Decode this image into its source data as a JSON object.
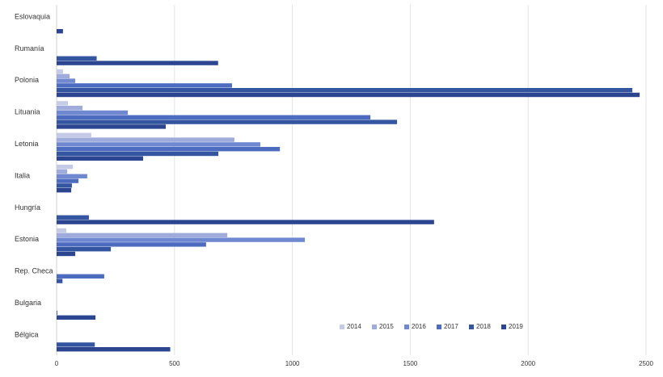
{
  "chart_data": {
    "type": "hbar",
    "categories": [
      "Eslovaquia",
      "Rumanía",
      "Polonia",
      "Lituania",
      "Letonia",
      "Italia",
      "Hungría",
      "Estonia",
      "Rep. Checa",
      "Bulgaria",
      "Bélgica"
    ],
    "series": [
      {
        "name": "2014",
        "color": "#c5cbe6",
        "values": [
          null,
          null,
          27,
          48,
          147,
          69,
          null,
          41,
          null,
          null,
          null
        ]
      },
      {
        "name": "2015",
        "color": "#9eabdb",
        "values": [
          null,
          null,
          55,
          110,
          754,
          45,
          null,
          724,
          null,
          null,
          null
        ]
      },
      {
        "name": "2016",
        "color": "#6f88d0",
        "values": [
          null,
          null,
          79,
          302,
          864,
          130,
          null,
          1053,
          null,
          null,
          null
        ]
      },
      {
        "name": "2017",
        "color": "#4d6cc0",
        "values": [
          null,
          null,
          744,
          1331,
          947,
          93,
          null,
          634,
          202,
          null,
          null
        ]
      },
      {
        "name": "2018",
        "color": "#34559f",
        "values": [
          null,
          170,
          2442,
          1444,
          686,
          65,
          137,
          230,
          25,
          3,
          162
        ]
      },
      {
        "name": "2019",
        "color": "#2b4591",
        "values": [
          27,
          685,
          2473,
          463,
          367,
          62,
          1601,
          79,
          null,
          165,
          482
        ]
      }
    ],
    "xlim": [
      0,
      2500
    ],
    "xticks": [
      0,
      500,
      1000,
      1500,
      2000,
      2500
    ],
    "grid": true,
    "legend": "bottom-right"
  }
}
